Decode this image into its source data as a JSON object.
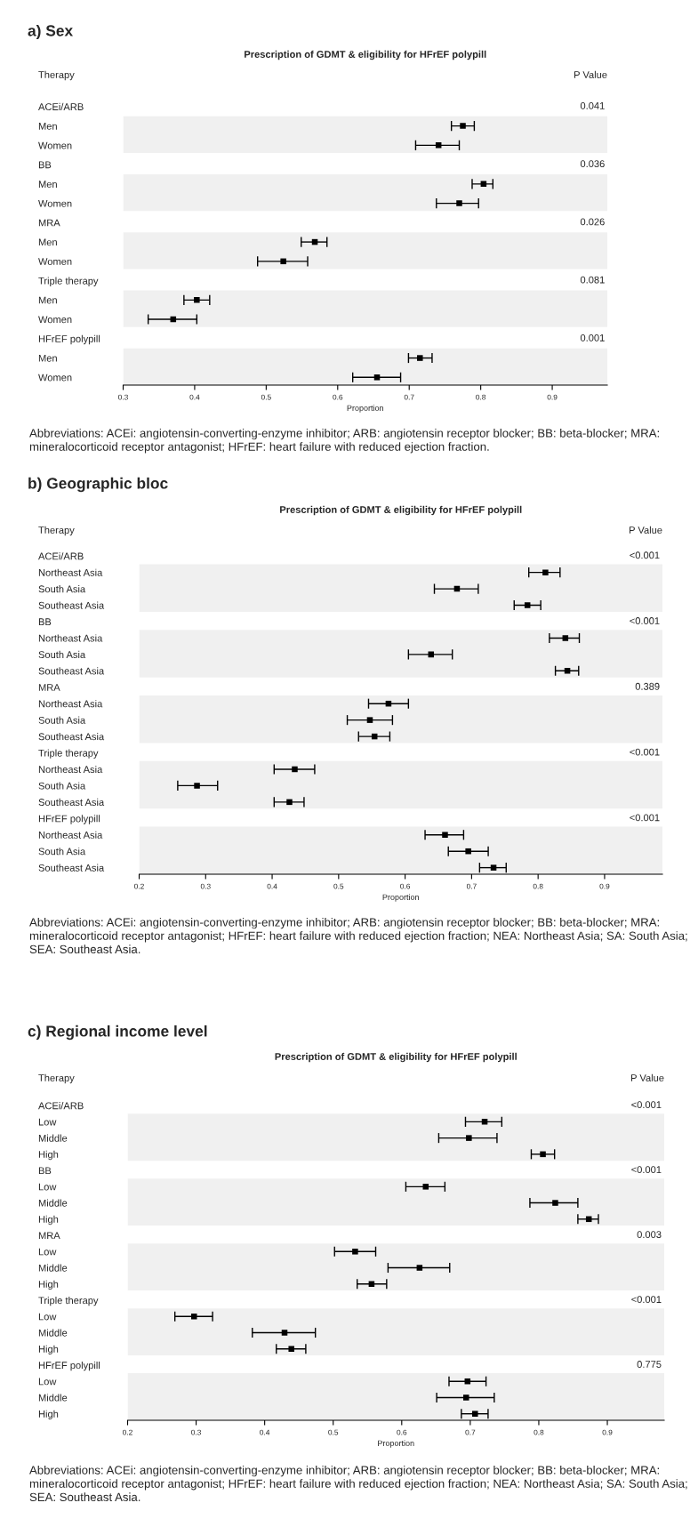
{
  "chart_data": [
    {
      "type": "scatter",
      "title": "a) Sex",
      "subtitle": "Prescription of GDMT & eligibility for HFrEF polypill",
      "xlabel": "Proportion",
      "orientation": "horizontal",
      "color": "#000000",
      "marker": "square",
      "categories": [
        "ACEi/ARB",
        "Men",
        "Women",
        "BB",
        "Men",
        "Women",
        "MRA",
        "Men",
        "Women",
        "Triple therapy",
        "Men",
        "Women",
        "HFrEF polypill",
        "Men",
        "Women"
      ],
      "values": [
        null,
        0.775,
        0.741,
        null,
        0.804,
        0.77,
        null,
        0.568,
        0.524,
        null,
        0.403,
        0.37,
        null,
        0.715,
        0.655
      ],
      "errors": [
        null,
        [
          0.759,
          0.791
        ],
        [
          0.709,
          0.77
        ],
        null,
        [
          0.788,
          0.817
        ],
        [
          0.738,
          0.797
        ],
        null,
        [
          0.549,
          0.585
        ],
        [
          0.488,
          0.558
        ],
        null,
        [
          0.385,
          0.421
        ],
        [
          0.335,
          0.403
        ],
        null,
        [
          0.699,
          0.732
        ],
        [
          0.621,
          0.688
        ]
      ],
      "xlim": [
        0.3,
        0.977
      ],
      "xticks": [
        0.3,
        0.4,
        0.5,
        0.6,
        0.7,
        0.8,
        0.9
      ],
      "annotations": [
        "Therapy",
        "P Value",
        "0.041",
        "0.036",
        "0.026",
        "0.081",
        "0.001",
        "Abbreviations: ACEi: angiotensin-converting-enzyme inhibitor; ARB: angiotensin receptor blocker; BB: beta-blocker; MRA: mineralocorticoid receptor antagonist; HFrEF: heart failure with reduced ejection fraction."
      ]
    },
    {
      "type": "scatter",
      "title": "b) Geographic bloc",
      "subtitle": "Prescription of GDMT & eligibility for HFrEF polypill",
      "xlabel": "Proportion",
      "orientation": "horizontal",
      "color": "#000000",
      "marker": "square",
      "categories": [
        "ACEi/ARB",
        "Northeast Asia",
        "South Asia",
        "Southeast Asia",
        "BB",
        "Northeast Asia",
        "South Asia",
        "Southeast Asia",
        "MRA",
        "Northeast Asia",
        "South Asia",
        "Southeast Asia",
        "Triple therapy",
        "Northeast Asia",
        "South Asia",
        "Southeast Asia",
        "HFrEF polypill",
        "Northeast Asia",
        "South Asia",
        "Southeast Asia"
      ],
      "values": [
        null,
        0.811,
        0.678,
        0.784,
        null,
        0.841,
        0.639,
        0.844,
        null,
        0.575,
        0.547,
        0.554,
        null,
        0.434,
        0.287,
        0.426,
        null,
        0.66,
        0.695,
        0.733
      ],
      "errors": [
        null,
        [
          0.786,
          0.833
        ],
        [
          0.644,
          0.71
        ],
        [
          0.764,
          0.804
        ],
        null,
        [
          0.817,
          0.862
        ],
        [
          0.605,
          0.671
        ],
        [
          0.826,
          0.861
        ],
        null,
        [
          0.545,
          0.605
        ],
        [
          0.513,
          0.581
        ],
        [
          0.53,
          0.577
        ],
        null,
        [
          0.403,
          0.464
        ],
        [
          0.258,
          0.318
        ],
        [
          0.403,
          0.448
        ],
        null,
        [
          0.63,
          0.688
        ],
        [
          0.665,
          0.725
        ],
        [
          0.712,
          0.752
        ]
      ],
      "xlim": [
        0.2,
        0.987
      ],
      "xticks": [
        0.2,
        0.3,
        0.4,
        0.5,
        0.6,
        0.7,
        0.8,
        0.9
      ],
      "annotations": [
        "Therapy",
        "P Value",
        "<0.001",
        "<0.001",
        "0.389",
        "<0.001",
        "<0.001",
        "Abbreviations: ACEi: angiotensin-converting-enzyme inhibitor; ARB: angiotensin receptor blocker; BB: beta-blocker; MRA: mineralocorticoid receptor antagonist; HFrEF: heart failure with reduced ejection fraction; NEA: Northeast Asia; SA: South Asia; SEA: Southeast Asia."
      ]
    },
    {
      "type": "scatter",
      "title": "c) Regional income level",
      "subtitle": "Prescription of GDMT & eligibility for HFrEF polypill",
      "xlabel": "Proportion",
      "orientation": "horizontal",
      "color": "#000000",
      "marker": "square",
      "categories": [
        "ACEi/ARB",
        "Low",
        "Middle",
        "High",
        "BB",
        "Low",
        "Middle",
        "High",
        "MRA",
        "Low",
        "Middle",
        "High",
        "Triple therapy",
        "Low",
        "Middle",
        "High",
        "HFrEF polypill",
        "Low",
        "Middle",
        "High"
      ],
      "values": [
        null,
        0.721,
        0.698,
        0.806,
        null,
        0.635,
        0.824,
        0.873,
        null,
        0.532,
        0.626,
        0.556,
        null,
        0.297,
        0.429,
        0.439,
        null,
        0.696,
        0.694,
        0.707
      ],
      "errors": [
        null,
        [
          0.693,
          0.746
        ],
        [
          0.654,
          0.739
        ],
        [
          0.789,
          0.823
        ],
        null,
        [
          0.606,
          0.663
        ],
        [
          0.787,
          0.857
        ],
        [
          0.857,
          0.887
        ],
        null,
        [
          0.502,
          0.562
        ],
        [
          0.58,
          0.67
        ],
        [
          0.535,
          0.578
        ],
        null,
        [
          0.269,
          0.324
        ],
        [
          0.382,
          0.474
        ],
        [
          0.417,
          0.46
        ],
        null,
        [
          0.669,
          0.723
        ],
        [
          0.651,
          0.735
        ],
        [
          0.687,
          0.726
        ]
      ],
      "xlim": [
        0.2,
        0.983
      ],
      "xticks": [
        0.2,
        0.3,
        0.4,
        0.5,
        0.6,
        0.7,
        0.8,
        0.9
      ],
      "annotations": [
        "Therapy",
        "P Value",
        "<0.001",
        "<0.001",
        "0.003",
        "<0.001",
        "0.775",
        "Abbreviations: ACEi: angiotensin-converting-enzyme inhibitor; ARB: angiotensin receptor blocker; BB: beta-blocker; MRA: mineralocorticoid receptor antagonist; HFrEF: heart failure with reduced ejection fraction; NEA: Northeast Asia; SA: South Asia; SEA: Southeast Asia."
      ]
    }
  ]
}
